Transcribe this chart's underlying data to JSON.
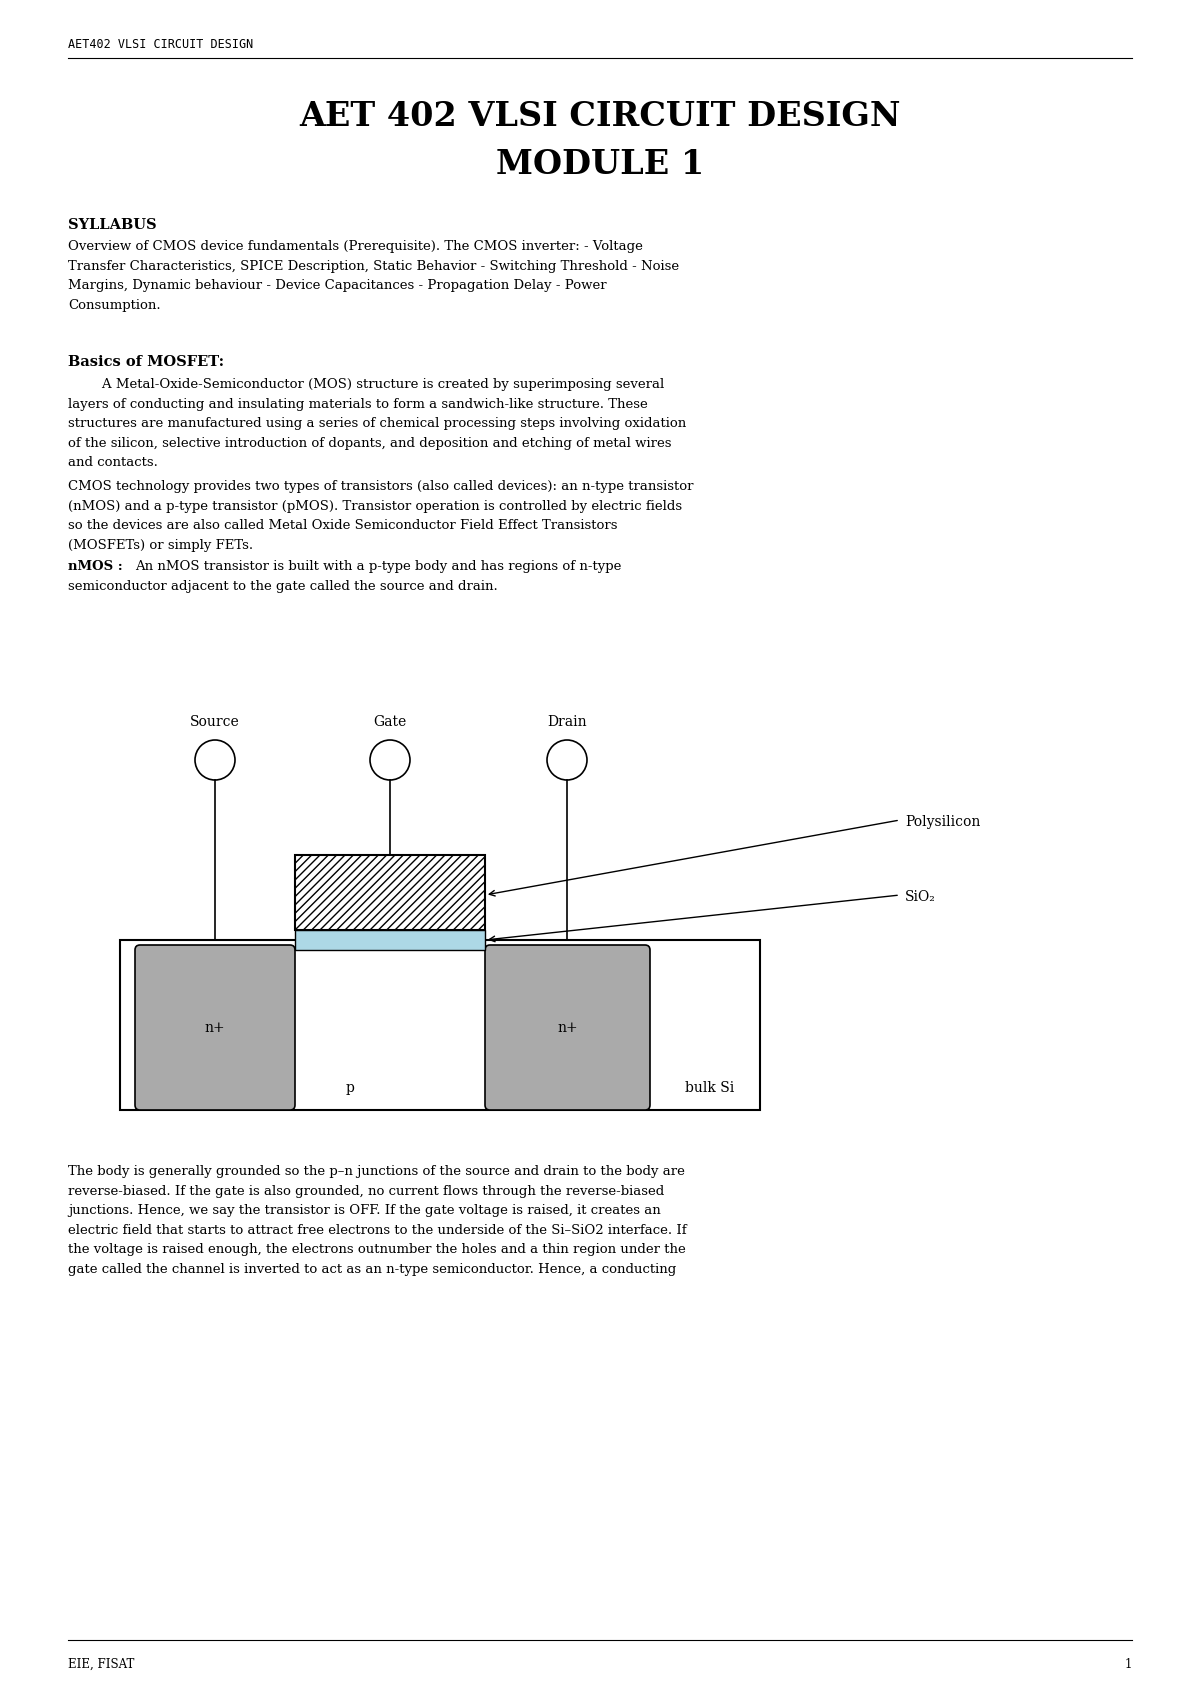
{
  "bg_color": "#ffffff",
  "header_text": "AET402 VLSI CIRCUIT DESIGN",
  "title_line1": "AET 402 VLSI CIRCUIT DESIGN",
  "title_line2": "MODULE 1",
  "syllabus_heading": "SYLLABUS",
  "syllabus_text_lines": [
    "Overview of CMOS device fundamentals (Prerequisite). The CMOS inverter: - Voltage",
    "Transfer Characteristics, SPICE Description, Static Behavior - Switching Threshold - Noise",
    "Margins, Dynamic behaviour - Device Capacitances - Propagation Delay - Power",
    "Consumption."
  ],
  "mosfet_heading": "Basics of MOSFET:",
  "mosfet_para1_lines": [
    "        A Metal-Oxide-Semiconductor (MOS) structure is created by superimposing several",
    "layers of conducting and insulating materials to form a sandwich-like structure. These",
    "structures are manufactured using a series of chemical processing steps involving oxidation",
    "of the silicon, selective introduction of dopants, and deposition and etching of metal wires",
    "and contacts."
  ],
  "mosfet_para2_lines": [
    "CMOS technology provides two types of transistors (also called devices): an n-type transistor",
    "(nMOS) and a p-type transistor (pMOS). Transistor operation is controlled by electric fields",
    "so the devices are also called Metal Oxide Semiconductor Field Effect Transistors",
    "(MOSFETs) or simply FETs."
  ],
  "nmos_bold": "nMOS : ",
  "nmos_rest": "An nMOS transistor is built with a p-type body and has regions of n-type",
  "nmos_rest2": "semiconductor adjacent to the gate called the source and drain.",
  "bottom_para_lines": [
    "The body is generally grounded so the p–n junctions of the source and drain to the body are",
    "reverse-biased. If the gate is also grounded, no current flows through the reverse-biased",
    "junctions. Hence, we say the transistor is OFF. If the gate voltage is raised, it creates an",
    "electric field that starts to attract free electrons to the underside of the Si–SiO2 interface. If",
    "the voltage is raised enough, the electrons outnumber the holes and a thin region under the",
    "gate called the channel is inverted to act as an n-type semiconductor. Hence, a conducting"
  ],
  "footer_text": "EIE, FISAT",
  "page_number": "1",
  "diagram_source_label": "Source",
  "diagram_gate_label": "Gate",
  "diagram_drain_label": "Drain",
  "diagram_polysilicon_label": "Polysilicon",
  "diagram_sio2_label": "SiO₂",
  "diagram_nplus_left": "n+",
  "diagram_nplus_right": "n+",
  "diagram_p_label": "p",
  "diagram_bulk_label": "bulk Si",
  "diagram_color_nplus": "#aaaaaa",
  "diagram_color_sio2": "#add8e6"
}
